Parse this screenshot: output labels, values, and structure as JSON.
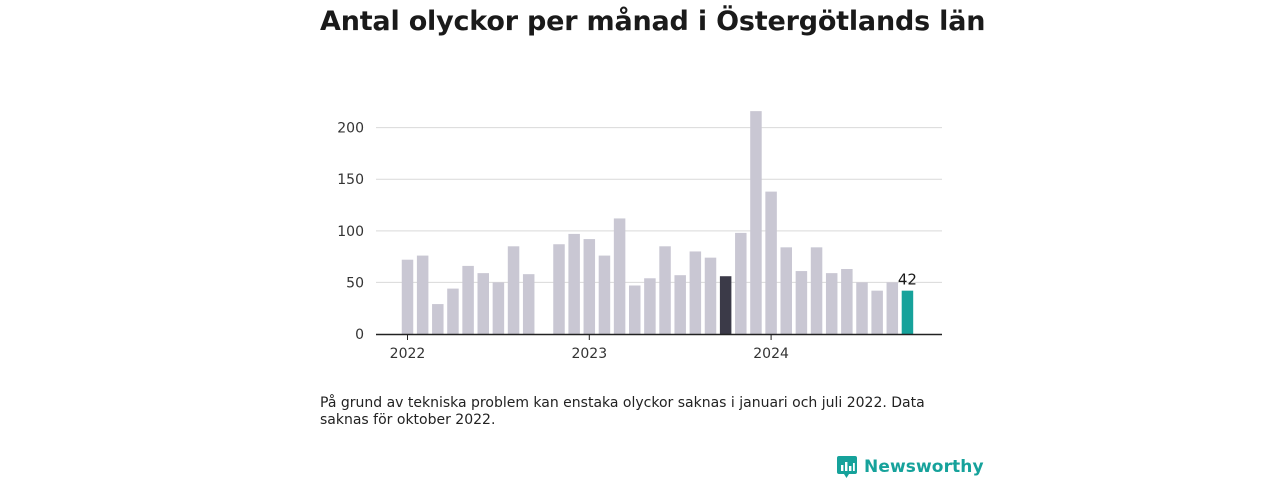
{
  "title": "Antal olyckor per månad i Östergötlands län",
  "footnote": "På grund av tekniska problem kan enstaka olyckor saknas i januari och juli 2022. Data saknas för oktober 2022.",
  "brand": "Newsworthy",
  "colors": {
    "bar": "#c9c7d3",
    "highlight_dark": "#3b3a48",
    "highlight_latest": "#16a29b",
    "grid": "#d9d9d9",
    "axis": "#222222",
    "brand": "#16a29b"
  },
  "chart_data": {
    "type": "bar",
    "title": "Antal olyckor per månad i Östergötlands län",
    "xlabel": "",
    "ylabel": "",
    "ylim": [
      0,
      220
    ],
    "yticks": [
      0,
      50,
      100,
      150,
      200
    ],
    "grid": true,
    "x_tick_labels": [
      "2022",
      "2023",
      "2024"
    ],
    "categories": [
      "2022-01",
      "2022-02",
      "2022-03",
      "2022-04",
      "2022-05",
      "2022-06",
      "2022-07",
      "2022-08",
      "2022-09",
      "2022-10",
      "2022-11",
      "2022-12",
      "2023-01",
      "2023-02",
      "2023-03",
      "2023-04",
      "2023-05",
      "2023-06",
      "2023-07",
      "2023-08",
      "2023-09",
      "2023-10",
      "2023-11",
      "2023-12",
      "2024-01",
      "2024-02",
      "2024-03",
      "2024-04",
      "2024-05",
      "2024-06",
      "2024-07",
      "2024-08",
      "2024-09",
      "2024-10"
    ],
    "values": [
      72,
      76,
      29,
      44,
      66,
      59,
      50,
      85,
      58,
      null,
      87,
      97,
      92,
      76,
      112,
      47,
      54,
      85,
      57,
      80,
      74,
      56,
      98,
      216,
      138,
      84,
      61,
      84,
      59,
      63,
      50,
      42,
      50,
      42
    ],
    "highlight_dark_index": 21,
    "highlight_latest_index": 33,
    "annotations": [
      {
        "category": "2024-10",
        "text": "42"
      }
    ]
  }
}
